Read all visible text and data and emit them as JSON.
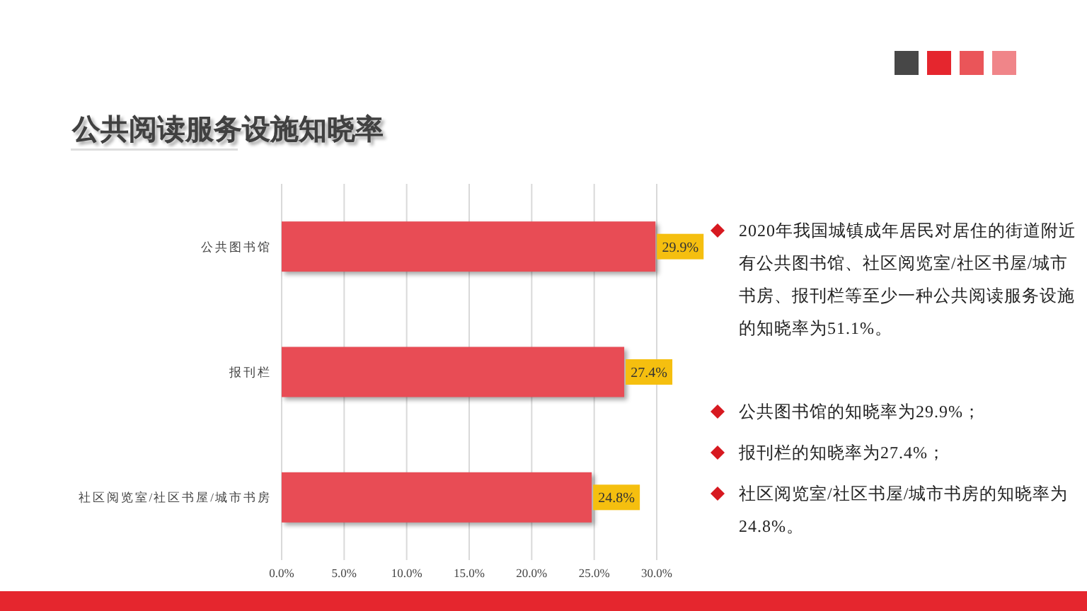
{
  "chart_data": {
    "type": "bar",
    "orientation": "horizontal",
    "title": "公共阅读服务设施知晓率",
    "categories": [
      "公共图书馆",
      "报刊栏",
      "社区阅览室/社区书屋/城市书房"
    ],
    "values": [
      29.9,
      27.4,
      24.8
    ],
    "value_labels": [
      "29.9%",
      "27.4%",
      "24.8%"
    ],
    "color": "#e84c55",
    "xlim": [
      0,
      30
    ],
    "xticks": [
      {
        "value": 0,
        "label": "0.0%"
      },
      {
        "value": 5,
        "label": "5.0%"
      },
      {
        "value": 10,
        "label": "10.0%"
      },
      {
        "value": 15,
        "label": "15.0%"
      },
      {
        "value": 20,
        "label": "20.0%"
      },
      {
        "value": 25,
        "label": "25.0%"
      },
      {
        "value": 30,
        "label": "30.0%"
      }
    ],
    "grid": "x",
    "annotations": [
      "2020年我国城镇成年居民对居住的街道附近有公共图书馆、社区阅览室/社区书屋/城市书房、报刊栏等至少一种公共阅读服务设施的知晓率为51.1%。",
      "公共图书馆的知晓率为29.9%；",
      "报刊栏的知晓率为27.4%；",
      "社区阅览室/社区书屋/城市书房的知晓率为24.8%。"
    ]
  }
}
